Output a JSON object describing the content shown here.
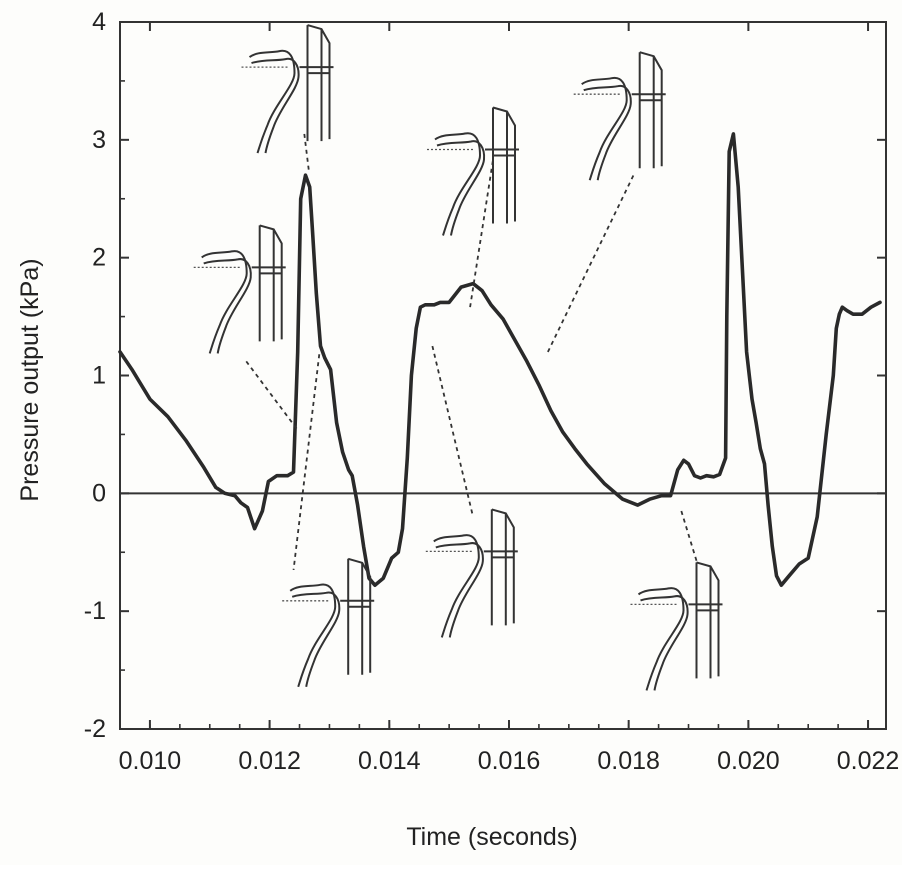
{
  "chart_data": {
    "type": "line",
    "title": "",
    "xlabel": "Time (seconds)",
    "ylabel": "Pressure output (kPa)",
    "xlim": [
      0.0095,
      0.0223
    ],
    "ylim": [
      -2,
      4
    ],
    "x_ticks": [
      0.01,
      0.012,
      0.014,
      0.016,
      0.018,
      0.02,
      0.022
    ],
    "x_tick_labels": [
      "0.010",
      "0.012",
      "0.014",
      "0.016",
      "0.018",
      "0.020",
      "0.022"
    ],
    "y_ticks": [
      -2,
      -1,
      0,
      1,
      2,
      3,
      4
    ],
    "y_tick_labels": [
      "-2",
      "-1",
      "0",
      "1",
      "2",
      "3",
      "4"
    ],
    "grid": false,
    "zero_line": true,
    "legend": "none",
    "series": [
      {
        "x": [
          0.0095,
          0.0097,
          0.01,
          0.0103,
          0.0106,
          0.0109,
          0.0111,
          0.01125,
          0.01142,
          0.01152,
          0.01163,
          0.01175,
          0.01188,
          0.01198,
          0.01212,
          0.0123,
          0.0124,
          0.01247,
          0.01252,
          0.0126,
          0.01267,
          0.01272,
          0.01278,
          0.01285,
          0.01292,
          0.01302,
          0.01312,
          0.01322,
          0.01332,
          0.01338,
          0.01347,
          0.01357,
          0.01366,
          0.01376,
          0.0139,
          0.01404,
          0.01415,
          0.01422,
          0.0143,
          0.01437,
          0.01445,
          0.01452,
          0.0146,
          0.01475,
          0.01485,
          0.015,
          0.0152,
          0.0154,
          0.01555,
          0.0157,
          0.0159,
          0.0161,
          0.0163,
          0.0165,
          0.0167,
          0.0169,
          0.0171,
          0.0173,
          0.0176,
          0.0179,
          0.01815,
          0.01835,
          0.01855,
          0.0187,
          0.01882,
          0.01892,
          0.019,
          0.0191,
          0.0192,
          0.0193,
          0.01942,
          0.01952,
          0.01962,
          0.01964,
          0.01968,
          0.01975,
          0.01983,
          0.0199,
          0.01997,
          0.02006,
          0.02013,
          0.0202,
          0.02027,
          0.02033,
          0.0204,
          0.02047,
          0.02055,
          0.02068,
          0.02085,
          0.021,
          0.02115,
          0.0213,
          0.02142,
          0.02147,
          0.02152,
          0.02157,
          0.02165,
          0.02175,
          0.0219,
          0.02205,
          0.0222
        ],
        "y": [
          1.2,
          1.05,
          0.8,
          0.65,
          0.45,
          0.22,
          0.05,
          0.0,
          -0.02,
          -0.08,
          -0.12,
          -0.3,
          -0.15,
          0.1,
          0.15,
          0.15,
          0.18,
          1.2,
          2.5,
          2.7,
          2.6,
          2.2,
          1.7,
          1.25,
          1.15,
          1.05,
          0.6,
          0.35,
          0.2,
          0.15,
          -0.1,
          -0.45,
          -0.72,
          -0.78,
          -0.72,
          -0.55,
          -0.5,
          -0.3,
          0.3,
          1.0,
          1.4,
          1.58,
          1.6,
          1.6,
          1.62,
          1.62,
          1.75,
          1.78,
          1.72,
          1.6,
          1.48,
          1.3,
          1.12,
          0.92,
          0.7,
          0.52,
          0.38,
          0.25,
          0.08,
          -0.05,
          -0.1,
          -0.05,
          -0.02,
          -0.02,
          0.2,
          0.28,
          0.25,
          0.15,
          0.13,
          0.15,
          0.14,
          0.16,
          0.3,
          1.5,
          2.9,
          3.05,
          2.6,
          1.9,
          1.2,
          0.8,
          0.6,
          0.38,
          0.25,
          -0.1,
          -0.45,
          -0.7,
          -0.78,
          -0.7,
          -0.6,
          -0.55,
          -0.2,
          0.5,
          1.0,
          1.4,
          1.52,
          1.58,
          1.55,
          1.52,
          1.52,
          1.58,
          1.62
        ]
      }
    ],
    "annotations": [
      {
        "type": "leader_line",
        "x1": 0.01258,
        "y1": 3.05,
        "x2": 0.01266,
        "y2": 2.72
      },
      {
        "type": "leader_line",
        "x1": 0.01161,
        "y1": 1.12,
        "x2": 0.01245,
        "y2": 0.55
      },
      {
        "type": "leader_line",
        "x1": 0.01283,
        "y1": 1.18,
        "x2": 0.0124,
        "y2": -0.65
      },
      {
        "type": "leader_line",
        "x1": 0.01472,
        "y1": 1.25,
        "x2": 0.0154,
        "y2": -0.2
      },
      {
        "type": "leader_line",
        "x1": 0.01535,
        "y1": 1.58,
        "x2": 0.01573,
        "y2": 2.82
      },
      {
        "type": "leader_line",
        "x1": 0.01665,
        "y1": 1.2,
        "x2": 0.0181,
        "y2": 2.72
      },
      {
        "type": "leader_line",
        "x1": 0.01888,
        "y1": -0.15,
        "x2": 0.01915,
        "y2": -0.6
      }
    ],
    "insets": [
      {
        "depicts": "vocal-fold-cross-section",
        "cx": 0.0125,
        "cy": 3.38
      },
      {
        "depicts": "vocal-fold-cross-section",
        "cx": 0.0117,
        "cy": 1.68
      },
      {
        "depicts": "vocal-fold-cross-section",
        "cx": 0.0156,
        "cy": 2.68
      },
      {
        "depicts": "vocal-fold-cross-section",
        "cx": 0.01805,
        "cy": 3.15
      },
      {
        "depicts": "vocal-fold-cross-section",
        "cx": 0.01318,
        "cy": -1.15
      },
      {
        "depicts": "vocal-fold-cross-section",
        "cx": 0.01558,
        "cy": -0.73
      },
      {
        "depicts": "vocal-fold-cross-section",
        "cx": 0.019,
        "cy": -1.18
      }
    ]
  }
}
